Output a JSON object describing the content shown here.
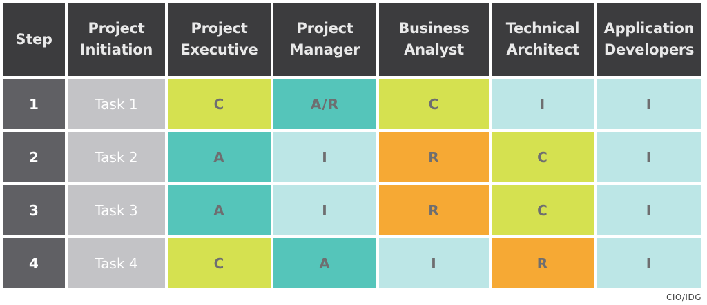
{
  "headers": [
    "Step",
    "Project\nInitiation",
    "Project\nExecutive",
    "Project\nManager",
    "Business\nAnalyst",
    "Technical\nArchitect",
    "Application\nDevelopers"
  ],
  "rows": [
    {
      "step": "1",
      "task": "Task 1",
      "cells": [
        "C",
        "A/R",
        "C",
        "I",
        "I"
      ]
    },
    {
      "step": "2",
      "task": "Task 2",
      "cells": [
        "A",
        "I",
        "R",
        "C",
        "I"
      ]
    },
    {
      "step": "3",
      "task": "Task 3",
      "cells": [
        "A",
        "I",
        "R",
        "C",
        "I"
      ]
    },
    {
      "step": "4",
      "task": "Task 4",
      "cells": [
        "C",
        "A",
        "I",
        "R",
        "I"
      ]
    }
  ],
  "colors": {
    "header_bg": "#3c3c3e",
    "step_bg": "#606064",
    "task_bg": "#c3c3c6",
    "C": "#d5e150",
    "A": "#55c5ba",
    "A/R": "#55c5ba",
    "R": "#f6a934",
    "I": "#bce6e6"
  },
  "credit": "CIO/IDG"
}
